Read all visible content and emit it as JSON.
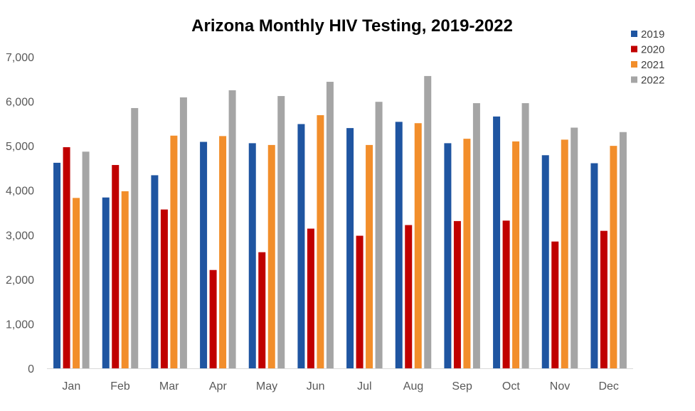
{
  "chart_data": {
    "type": "bar",
    "title": "Arizona Monthly HIV Testing, 2019-2022",
    "xlabel": "",
    "ylabel": "",
    "categories": [
      "Jan",
      "Feb",
      "Mar",
      "Apr",
      "May",
      "Jun",
      "Jul",
      "Aug",
      "Sep",
      "Oct",
      "Nov",
      "Dec"
    ],
    "ylim": [
      0,
      7000
    ],
    "yticks": [
      0,
      1000,
      2000,
      3000,
      4000,
      5000,
      6000,
      7000
    ],
    "ytick_labels": [
      "0",
      "1,000",
      "2,000",
      "3,000",
      "4,000",
      "5,000",
      "6,000",
      "7,000"
    ],
    "grid": false,
    "legend_position": "top-right",
    "series": [
      {
        "name": "2019",
        "color": "#1F55A1",
        "values": [
          4620,
          3840,
          4340,
          5090,
          5060,
          5490,
          5400,
          5540,
          5060,
          5660,
          4790,
          4610
        ]
      },
      {
        "name": "2020",
        "color": "#C00000",
        "values": [
          4970,
          4570,
          3570,
          2210,
          2610,
          3140,
          2980,
          3220,
          3310,
          3320,
          2850,
          3090
        ]
      },
      {
        "name": "2021",
        "color": "#F28E2B",
        "values": [
          3830,
          3980,
          5230,
          5220,
          5020,
          5690,
          5020,
          5510,
          5160,
          5100,
          5140,
          5000
        ]
      },
      {
        "name": "2022",
        "color": "#A5A5A5",
        "values": [
          4870,
          5850,
          6090,
          6250,
          6120,
          6440,
          5990,
          6570,
          5960,
          5960,
          5410,
          5310
        ]
      }
    ]
  }
}
